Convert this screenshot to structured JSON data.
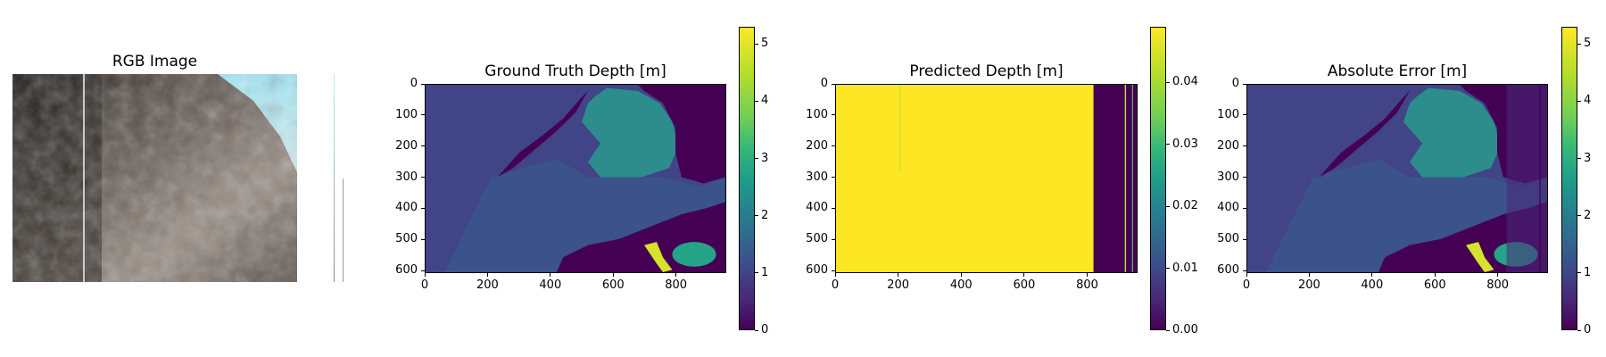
{
  "chart_data": [
    {
      "type": "image",
      "title": "RGB Image",
      "xlabel": "",
      "ylabel": "",
      "axes": "off"
    },
    {
      "type": "heatmap",
      "title": "Ground Truth Depth [m]",
      "xlabel": "",
      "ylabel": "",
      "xlim": [
        0,
        960
      ],
      "ylim": [
        608,
        0
      ],
      "xticks": [
        "0",
        "200",
        "400",
        "600",
        "800"
      ],
      "yticks": [
        "0",
        "100",
        "200",
        "300",
        "400",
        "500",
        "600"
      ],
      "colormap": "viridis",
      "colorbar": {
        "range": [
          0,
          5.3
        ],
        "ticks": [
          "0",
          "1",
          "2",
          "3",
          "4",
          "5"
        ]
      }
    },
    {
      "type": "heatmap",
      "title": "Predicted Depth [m]",
      "xlabel": "",
      "ylabel": "",
      "xlim": [
        0,
        960
      ],
      "ylim": [
        608,
        0
      ],
      "xticks": [
        "0",
        "200",
        "400",
        "600",
        "800"
      ],
      "yticks": [
        "0",
        "100",
        "200",
        "300",
        "400",
        "500",
        "600"
      ],
      "colormap": "viridis",
      "colorbar": {
        "range": [
          0,
          0.049
        ],
        "ticks": [
          "0.00",
          "0.01",
          "0.02",
          "0.03",
          "0.04"
        ]
      }
    },
    {
      "type": "heatmap",
      "title": "Absolute Error [m]",
      "xlabel": "",
      "ylabel": "",
      "xlim": [
        0,
        960
      ],
      "ylim": [
        608,
        0
      ],
      "xticks": [
        "0",
        "200",
        "400",
        "600",
        "800"
      ],
      "yticks": [
        "0",
        "100",
        "200",
        "300",
        "400",
        "500",
        "600"
      ],
      "colormap": "viridis",
      "colorbar": {
        "range": [
          0,
          5.3
        ],
        "ticks": [
          "0",
          "1",
          "2",
          "3",
          "4",
          "5"
        ]
      }
    }
  ],
  "colors": {
    "viridis_dark": "#440154",
    "viridis_mid": "#3b528b",
    "viridis_teal": "#21908d",
    "viridis_yellow": "#fde725"
  }
}
